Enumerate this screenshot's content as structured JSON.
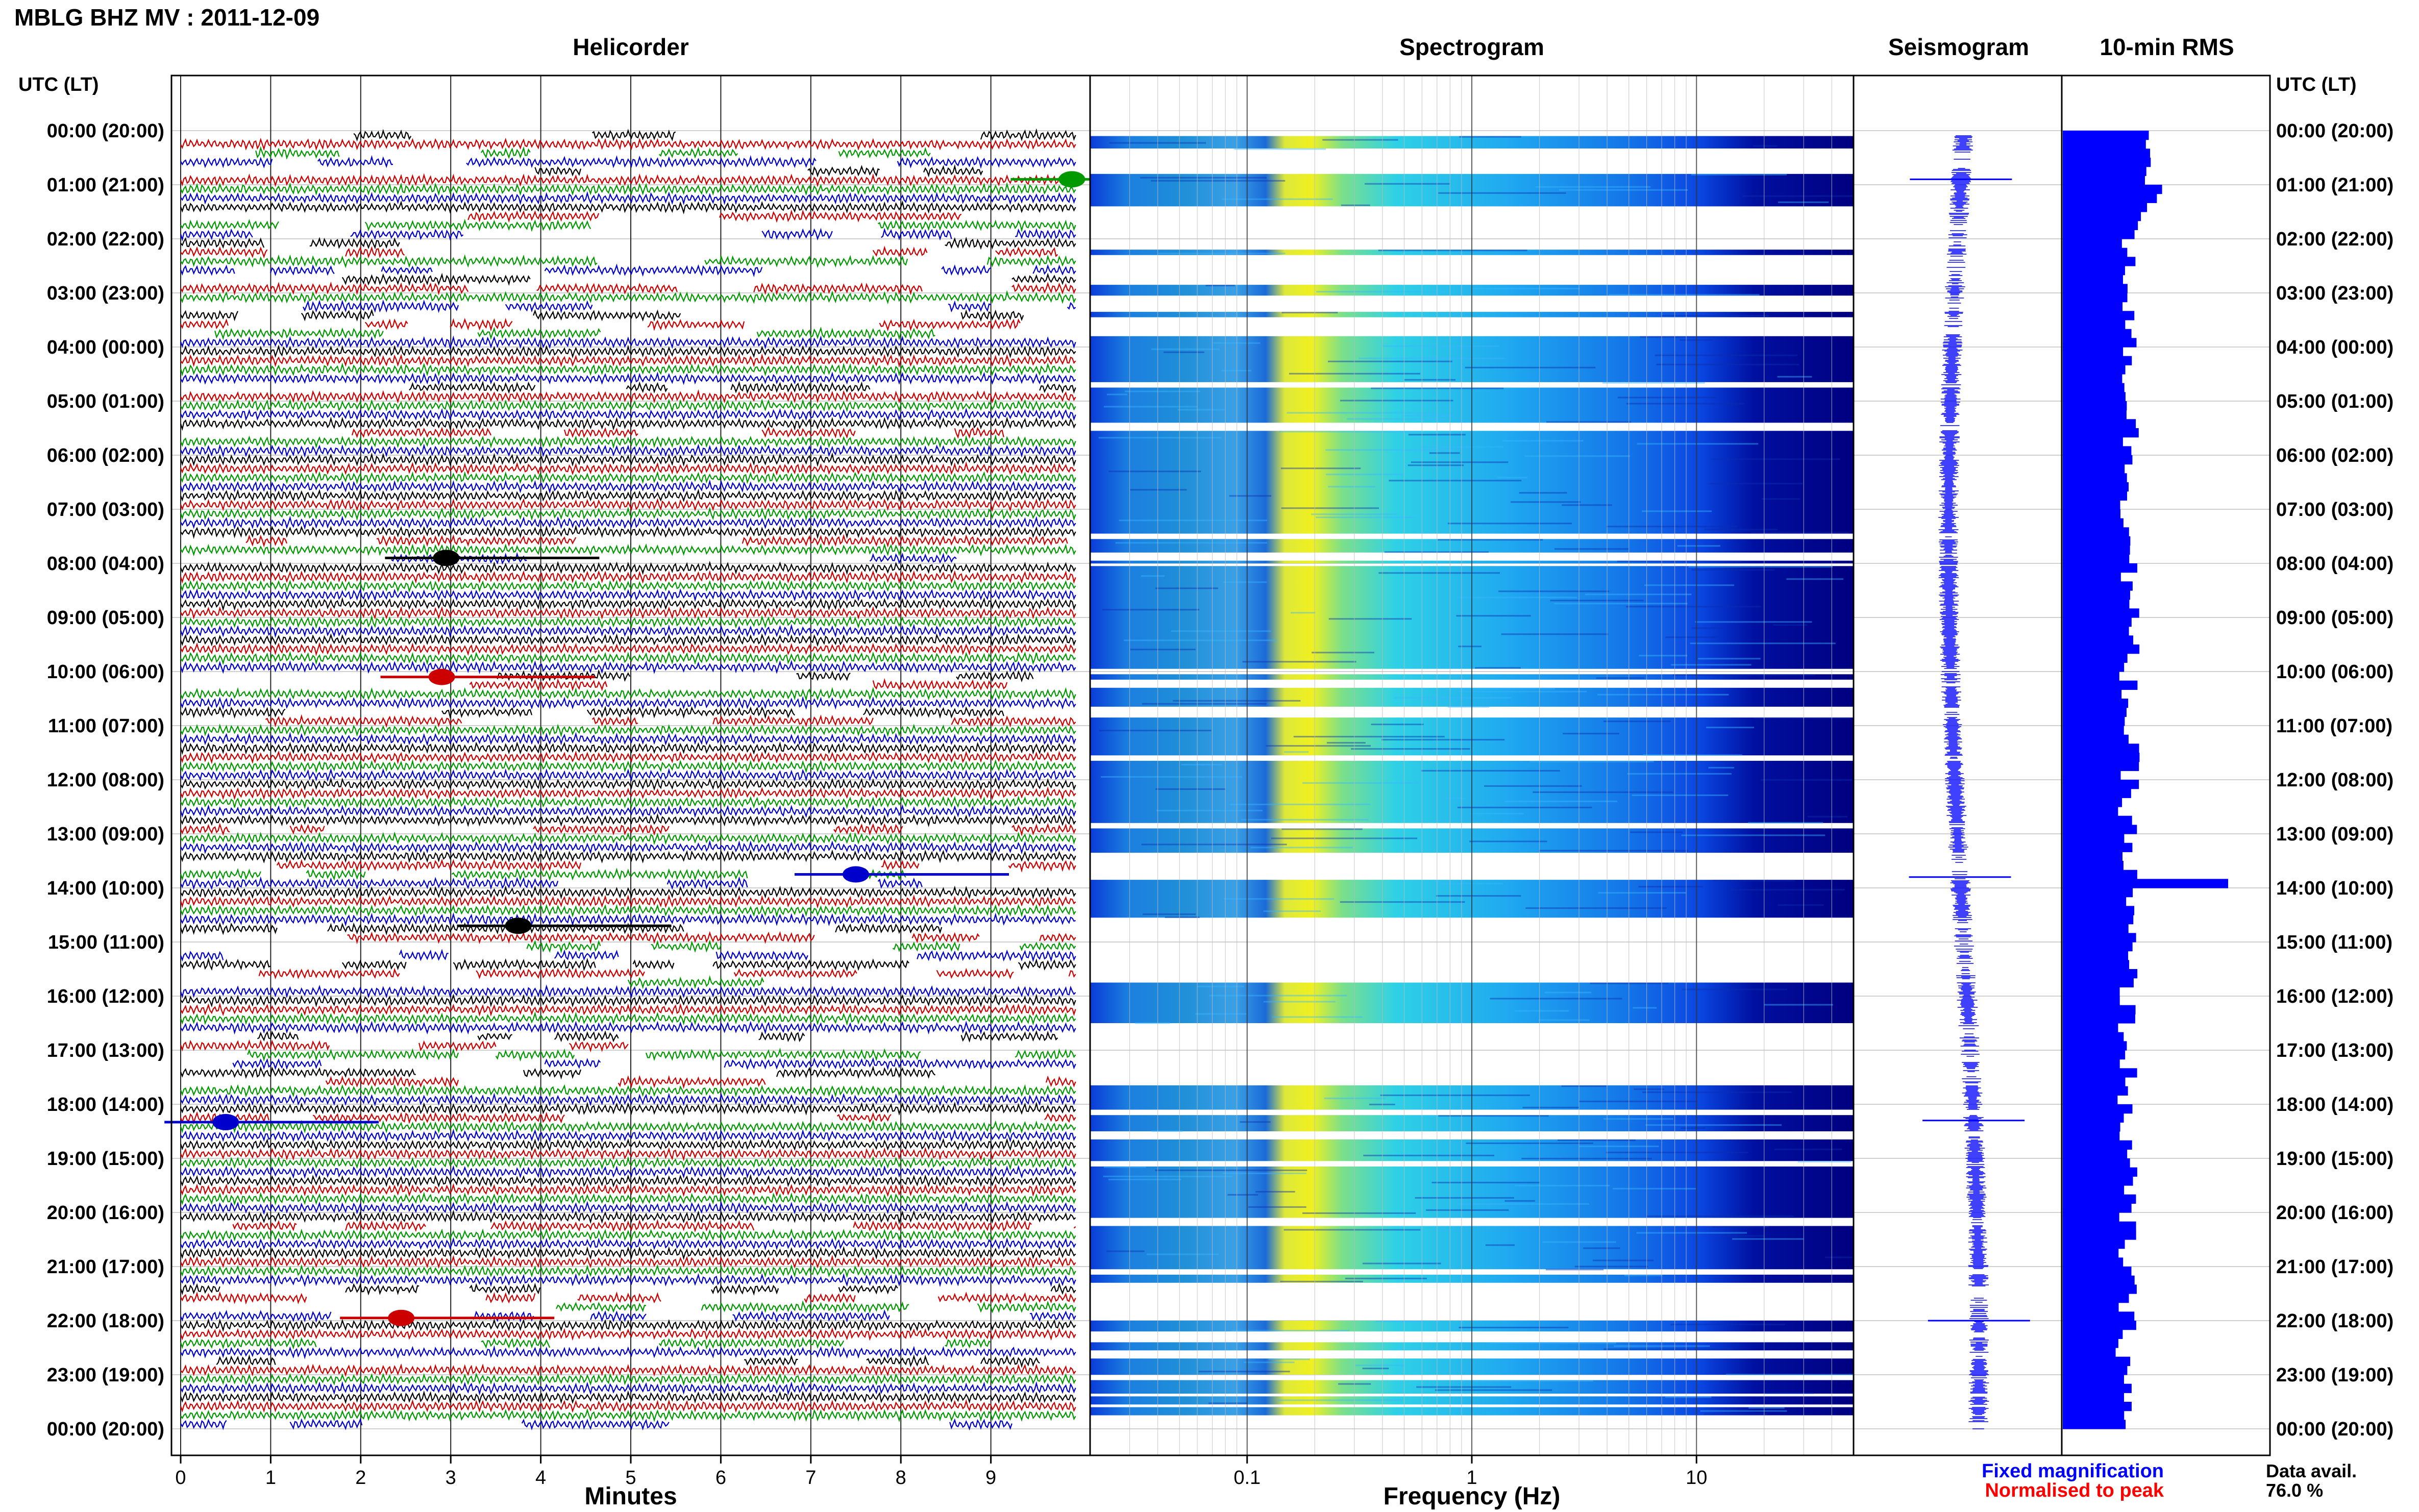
{
  "header": {
    "title": "MBLG BHZ MV : 2011-12-09",
    "utc_label_left": "UTC (LT)",
    "utc_label_right": "UTC (LT)"
  },
  "panels": {
    "helicorder": "Helicorder",
    "spectrogram": "Spectrogram",
    "seismogram": "Seismogram",
    "rms": "10-min RMS"
  },
  "time_labels": [
    "00:00 (20:00)",
    "01:00 (21:00)",
    "02:00 (22:00)",
    "03:00 (23:00)",
    "04:00 (00:00)",
    "05:00 (01:00)",
    "06:00 (02:00)",
    "07:00 (03:00)",
    "08:00 (04:00)",
    "09:00 (05:00)",
    "10:00 (06:00)",
    "11:00 (07:00)",
    "12:00 (08:00)",
    "13:00 (09:00)",
    "14:00 (10:00)",
    "15:00 (11:00)",
    "16:00 (12:00)",
    "17:00 (13:00)",
    "18:00 (14:00)",
    "19:00 (15:00)",
    "20:00 (16:00)",
    "21:00 (17:00)",
    "22:00 (18:00)",
    "23:00 (19:00)",
    "00:00 (20:00)"
  ],
  "chart_data": [
    {
      "type": "line",
      "panel": "helicorder",
      "xlabel": "Minutes",
      "xlim": [
        0,
        10
      ],
      "xticks": [
        0,
        1,
        2,
        3,
        4,
        5,
        6,
        7,
        8,
        9
      ],
      "rows": 144,
      "trace_colors": [
        "#000000",
        "#cc0000",
        "#009900",
        "#0000cc"
      ],
      "events": [
        {
          "hour": 13.75,
          "minute": 7.5,
          "color": "#0000cc"
        },
        {
          "hour": 18.33,
          "minute": 0.5,
          "color": "#0000cc"
        },
        {
          "hour": 0.9,
          "minute": 9.9,
          "color": "#009900"
        },
        {
          "hour": 21.95,
          "minute": 2.45,
          "color": "#cc0000"
        },
        {
          "hour": 10.1,
          "minute": 2.9,
          "color": "#cc0000"
        },
        {
          "hour": 7.9,
          "minute": 2.95,
          "color": "#000000"
        },
        {
          "hour": 14.7,
          "minute": 3.75,
          "color": "#000000"
        }
      ]
    },
    {
      "type": "heatmap",
      "panel": "spectrogram",
      "xlabel": "Frequency (Hz)",
      "xscale": "log",
      "xlim": [
        0.02,
        50
      ],
      "xticks": [
        0.1,
        1,
        10
      ],
      "xtick_labels": [
        "0.1",
        "1",
        "10"
      ],
      "colormap": [
        "#00007f",
        "#0000ff",
        "#00bfff",
        "#55ffaa",
        "#ffff00"
      ],
      "data_bands_hours": [
        [
          0.1,
          0.33
        ],
        [
          0.8,
          1.4
        ],
        [
          2.2,
          2.3
        ],
        [
          2.85,
          3.05
        ],
        [
          3.35,
          3.45
        ],
        [
          3.8,
          4.65
        ],
        [
          4.75,
          5.4
        ],
        [
          5.55,
          7.45
        ],
        [
          7.55,
          7.8
        ],
        [
          7.95,
          8.0
        ],
        [
          8.05,
          9.95
        ],
        [
          10.05,
          10.15
        ],
        [
          10.3,
          10.65
        ],
        [
          10.85,
          11.55
        ],
        [
          11.65,
          12.8
        ],
        [
          12.9,
          13.35
        ],
        [
          13.85,
          14.55
        ],
        [
          15.75,
          16.5
        ],
        [
          17.65,
          18.1
        ],
        [
          18.2,
          18.5
        ],
        [
          18.65,
          19.05
        ],
        [
          19.15,
          20.1
        ],
        [
          20.25,
          21.05
        ],
        [
          21.15,
          21.3
        ],
        [
          22.0,
          22.2
        ],
        [
          22.4,
          22.55
        ],
        [
          22.7,
          23.0
        ],
        [
          23.1,
          23.35
        ],
        [
          23.4,
          23.55
        ],
        [
          23.6,
          23.75
        ]
      ]
    },
    {
      "type": "line",
      "panel": "seismogram",
      "color": "#0000ff",
      "spike_hours": [
        0.9,
        13.8,
        18.3,
        22.0
      ]
    },
    {
      "type": "bar",
      "panel": "rms",
      "orientation": "horizontal",
      "color": "#0000ff",
      "interval_minutes": 10,
      "spike": {
        "hour": 13.8,
        "relative_value": 2.7
      },
      "baseline_relative_value": 1.0
    }
  ],
  "legend": {
    "fixed": "Fixed magnification",
    "fixed_color": "#0000ff",
    "normalised": "Normalised to peak",
    "normalised_color": "#ff0000"
  },
  "availability": {
    "label": "Data avail.",
    "value": "76.0 %"
  }
}
